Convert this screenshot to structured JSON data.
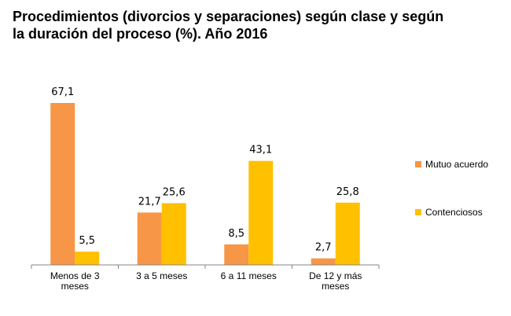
{
  "chart_data": {
    "type": "bar",
    "title": "Procedimientos (divorcios y separaciones) según clase y según la duración del proceso (%). Año 2016",
    "categories": [
      "Menos de 3 meses",
      "3 a 5 meses",
      "6 a 11 meses",
      "De 12 y más meses"
    ],
    "series": [
      {
        "name": "Mutuo acuerdo",
        "values": [
          67.1,
          21.7,
          8.5,
          2.7
        ],
        "labels": [
          "67,1",
          "21,7",
          "8,5",
          "2,7"
        ],
        "color": "#F79646"
      },
      {
        "name": "Contenciosos",
        "values": [
          5.5,
          25.6,
          43.1,
          25.8
        ],
        "labels": [
          "5,5",
          "25,6",
          "43,1",
          "25,8"
        ],
        "color": "#FFC000"
      }
    ],
    "ylim": [
      0,
      67.1
    ],
    "grid": false,
    "legend_position": "right"
  }
}
